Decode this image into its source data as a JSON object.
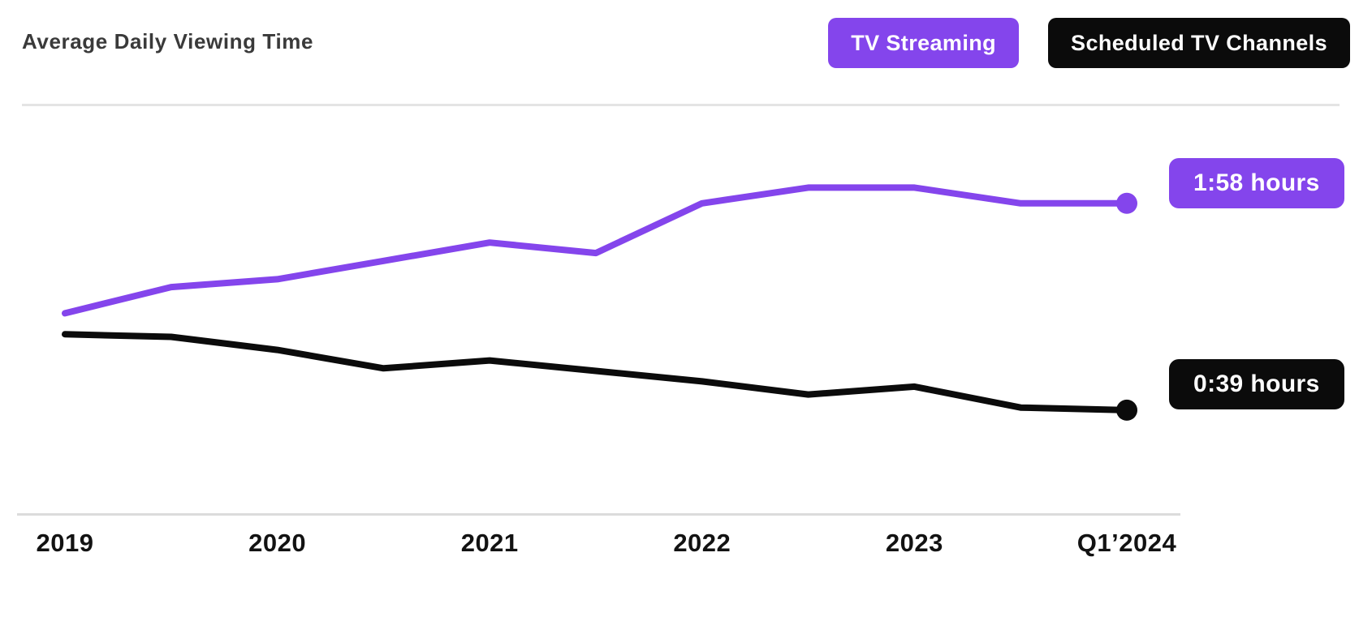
{
  "header": {
    "title": "Average Daily Viewing Time"
  },
  "legend": [
    {
      "label": "TV Streaming",
      "color": "#8445ec",
      "text_color": "#ffffff"
    },
    {
      "label": "Scheduled TV Channels",
      "color": "#0b0b0b",
      "text_color": "#ffffff"
    }
  ],
  "chart_data": {
    "type": "line",
    "title": "Average Daily Viewing Time",
    "x": [
      2019,
      2019.5,
      2020,
      2020.5,
      2021,
      2021.5,
      2022,
      2022.5,
      2023,
      2023.5,
      2024.25
    ],
    "x_tick_labels": [
      "2019",
      "2020",
      "2021",
      "2022",
      "2023",
      "Q1’2024"
    ],
    "ylim_minutes": [
      30,
      130
    ],
    "grid": false,
    "legend_position": "top-right",
    "series": [
      {
        "name": "TV Streaming",
        "color": "#8445ec",
        "values_minutes": [
          76,
          86,
          89,
          96,
          103,
          99,
          118,
          124,
          124,
          118,
          118
        ],
        "values_hhmm": [
          "1:16",
          "1:26",
          "1:29",
          "1:36",
          "1:43",
          "1:39",
          "1:58",
          "2:04",
          "2:04",
          "1:58",
          "1:58"
        ],
        "end_label": "1:58 hours"
      },
      {
        "name": "Scheduled TV Channels",
        "color": "#0b0b0b",
        "values_minutes": [
          68,
          67,
          62,
          55,
          58,
          54,
          50,
          45,
          48,
          40,
          39
        ],
        "values_hhmm": [
          "1:08",
          "1:07",
          "1:02",
          "0:55",
          "0:58",
          "0:54",
          "0:50",
          "0:45",
          "0:48",
          "0:40",
          "0:39"
        ],
        "end_label": "0:39 hours"
      }
    ]
  }
}
